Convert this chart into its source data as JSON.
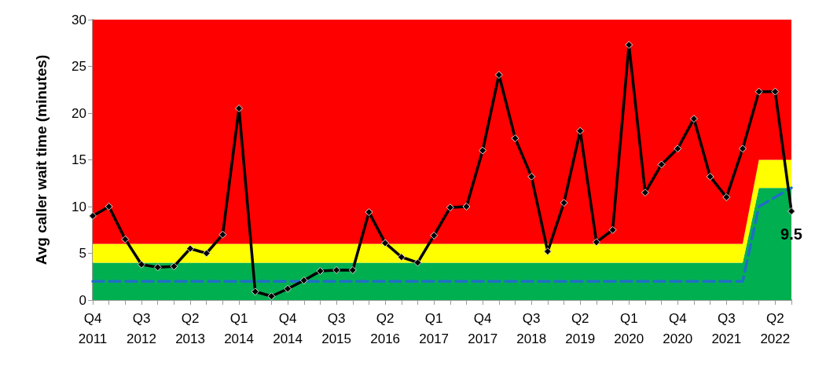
{
  "chart_data": {
    "type": "line",
    "ylabel": "Avg caller wait time (minutes)",
    "categories": [
      "Q4\n2011",
      null,
      null,
      "Q3\n2012",
      null,
      null,
      "Q2\n2013",
      null,
      null,
      "Q1\n2014",
      null,
      null,
      "Q4\n2014",
      null,
      null,
      "Q3\n2015",
      null,
      null,
      "Q2\n2016",
      null,
      null,
      "Q1\n2017",
      null,
      null,
      "Q4\n2017",
      null,
      null,
      "Q3\n2018",
      null,
      null,
      "Q2\n2019",
      null,
      null,
      "Q1\n2020",
      null,
      null,
      "Q4\n2020",
      null,
      null,
      "Q3\n2021",
      null,
      null,
      "Q2\n2022",
      null
    ],
    "ylim": [
      0,
      30
    ],
    "yticks": [
      0,
      5,
      10,
      15,
      20,
      25,
      30
    ],
    "grid": false,
    "stacked": true,
    "series": [
      {
        "type": "area",
        "color": "#00b050",
        "values": [
          4,
          4,
          4,
          4,
          4,
          4,
          4,
          4,
          4,
          4,
          4,
          4,
          4,
          4,
          4,
          4,
          4,
          4,
          4,
          4,
          4,
          4,
          4,
          4,
          4,
          4,
          4,
          4,
          4,
          4,
          4,
          4,
          4,
          4,
          4,
          4,
          4,
          4,
          4,
          4,
          4,
          12,
          12,
          12
        ]
      },
      {
        "type": "area",
        "color": "#ffff00",
        "values": [
          2,
          2,
          2,
          2,
          2,
          2,
          2,
          2,
          2,
          2,
          2,
          2,
          2,
          2,
          2,
          2,
          2,
          2,
          2,
          2,
          2,
          2,
          2,
          2,
          2,
          2,
          2,
          2,
          2,
          2,
          2,
          2,
          2,
          2,
          2,
          2,
          2,
          2,
          2,
          2,
          2,
          3,
          3,
          3
        ]
      },
      {
        "type": "area",
        "color": "#ff0000",
        "values": [
          24,
          24,
          24,
          24,
          24,
          24,
          24,
          24,
          24,
          24,
          24,
          24,
          24,
          24,
          24,
          24,
          24,
          24,
          24,
          24,
          24,
          24,
          24,
          24,
          24,
          24,
          24,
          24,
          24,
          24,
          24,
          24,
          24,
          24,
          24,
          24,
          24,
          24,
          24,
          24,
          24,
          15,
          15,
          15
        ]
      },
      {
        "type": "line",
        "color": "#1f6fc6",
        "line_style": "dashed",
        "marker": "none",
        "values": [
          2,
          2,
          2,
          2,
          2,
          2,
          2,
          2,
          2,
          2,
          2,
          2,
          2,
          2,
          2,
          2,
          2,
          2,
          2,
          2,
          2,
          2,
          2,
          2,
          2,
          2,
          2,
          2,
          2,
          2,
          2,
          2,
          2,
          2,
          2,
          2,
          2,
          2,
          2,
          2,
          2,
          10,
          11,
          12
        ]
      },
      {
        "color": "#000000",
        "line_style": "solid",
        "marker": "diamond",
        "values": [
          9,
          10,
          6.5,
          3.8,
          3.5,
          3.6,
          5.5,
          5,
          7,
          20.5,
          0.9,
          0.4,
          1.2,
          2.1,
          3.1,
          3.2,
          3.2,
          9.4,
          6.1,
          4.6,
          4,
          6.9,
          9.9,
          10,
          16,
          24.1,
          17.3,
          13.2,
          5.2,
          10.4,
          18.1,
          6.2,
          7.5,
          27.3,
          11.5,
          14.5,
          16.2,
          19.4,
          13.2,
          11,
          16.2,
          22.3,
          22.3,
          9.5
        ],
        "value_labels": [
          null,
          null,
          null,
          null,
          null,
          null,
          null,
          null,
          null,
          null,
          null,
          null,
          null,
          null,
          null,
          null,
          null,
          null,
          null,
          null,
          null,
          null,
          null,
          null,
          null,
          null,
          null,
          null,
          null,
          null,
          null,
          null,
          null,
          null,
          null,
          null,
          null,
          null,
          null,
          null,
          null,
          null,
          null,
          "9.5"
        ]
      }
    ]
  }
}
